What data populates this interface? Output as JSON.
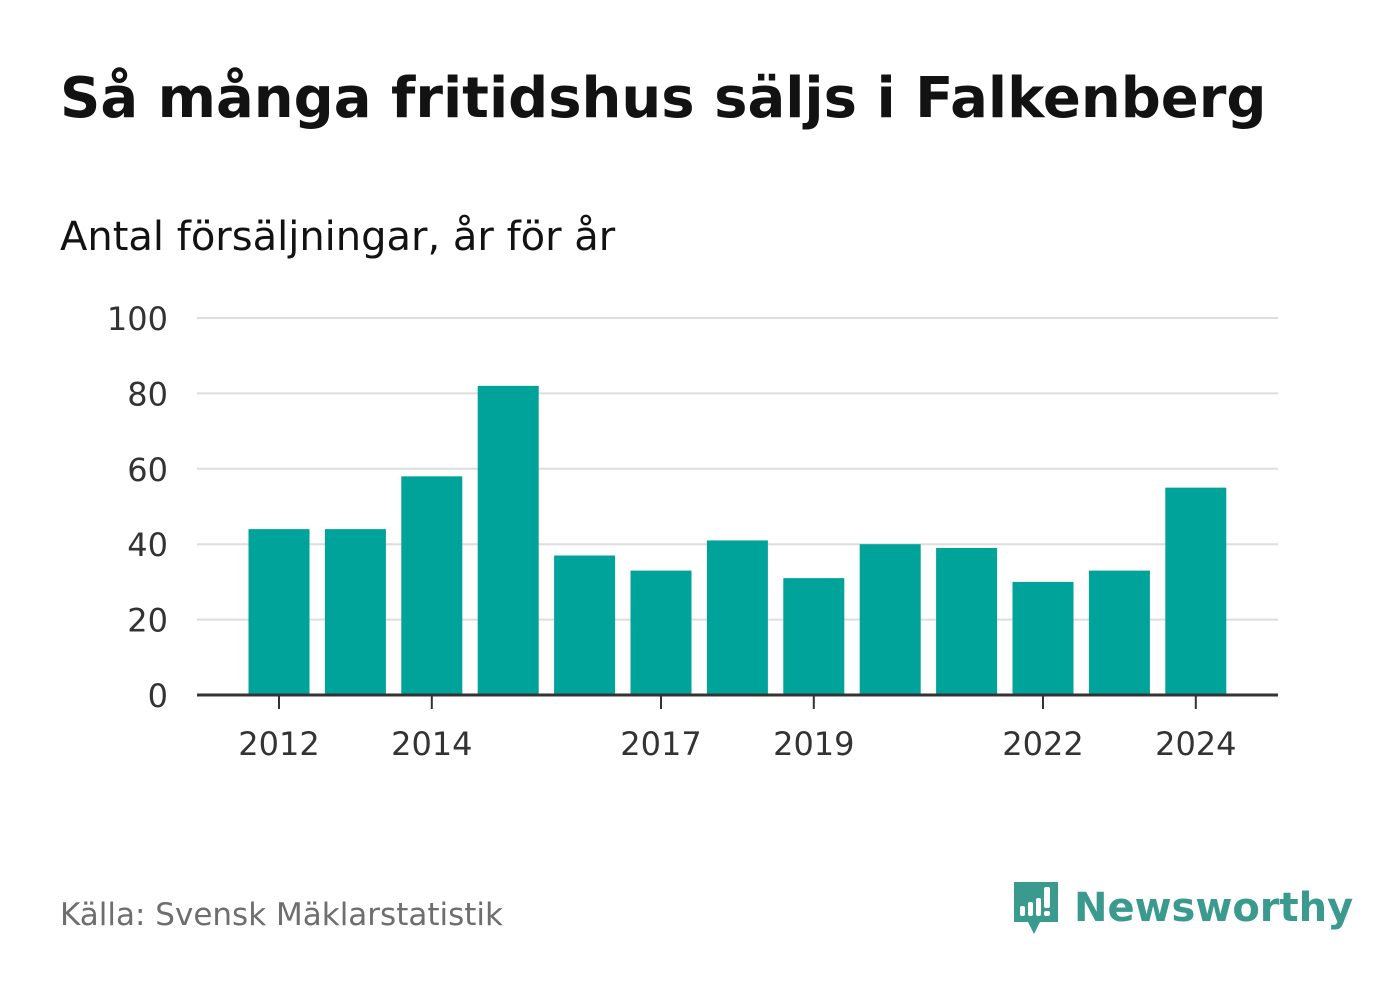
{
  "title": "Så många fritidshus säljs i Falkenberg",
  "subtitle": "Antal försäljningar, år för år",
  "source": "Källa: Svensk Mäklarstatistik",
  "brand": {
    "name": "Newsworthy",
    "icon": "newsworthy-logo-icon",
    "color": "#3a9a8e"
  },
  "chart_data": {
    "type": "bar",
    "categories": [
      "2012",
      "2013",
      "2014",
      "2015",
      "2016",
      "2017",
      "2018",
      "2019",
      "2020",
      "2021",
      "2022",
      "2023",
      "2024"
    ],
    "values": [
      44,
      44,
      58,
      82,
      37,
      33,
      41,
      31,
      40,
      39,
      30,
      33,
      55
    ],
    "x_tick_labels": [
      "2012",
      "2014",
      "2017",
      "2019",
      "2022",
      "2024"
    ],
    "y_ticks": [
      0,
      20,
      40,
      60,
      80,
      100
    ],
    "ylim": [
      0,
      100
    ],
    "grid": true,
    "bar_color": "#00a39a",
    "title": "Så många fritidshus säljs i Falkenberg",
    "subtitle": "Antal försäljningar, år för år",
    "xlabel": "",
    "ylabel": ""
  }
}
